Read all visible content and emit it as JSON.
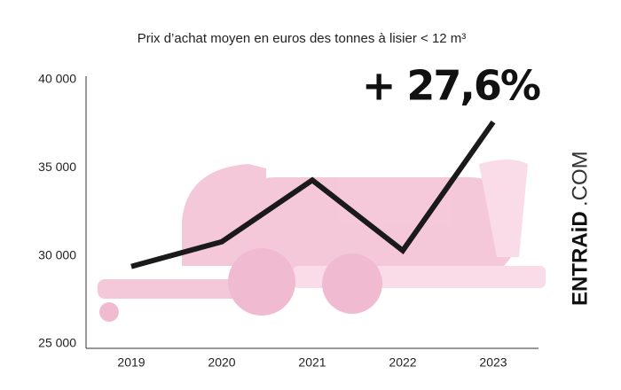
{
  "chart_data": {
    "type": "line",
    "title": "Prix d’achat moyen en euros des tonnes à lisier < 12 m³",
    "annotation": "+ 27,6%",
    "brand": [
      "ENTRAiD",
      ".COM"
    ],
    "categories": [
      "2019",
      "2020",
      "2021",
      "2022",
      "2023"
    ],
    "series": [
      {
        "color": "#1a1a1a",
        "values": [
          29400,
          30800,
          34300,
          30300,
          37600
        ]
      }
    ],
    "ylim": [
      25000,
      40000
    ],
    "yticks": [
      {
        "value": 25000,
        "label": "25 000"
      },
      {
        "value": 30000,
        "label": "30 000"
      },
      {
        "value": 35000,
        "label": "35 000"
      },
      {
        "value": 40000,
        "label": "40 000"
      }
    ],
    "grid": false
  }
}
